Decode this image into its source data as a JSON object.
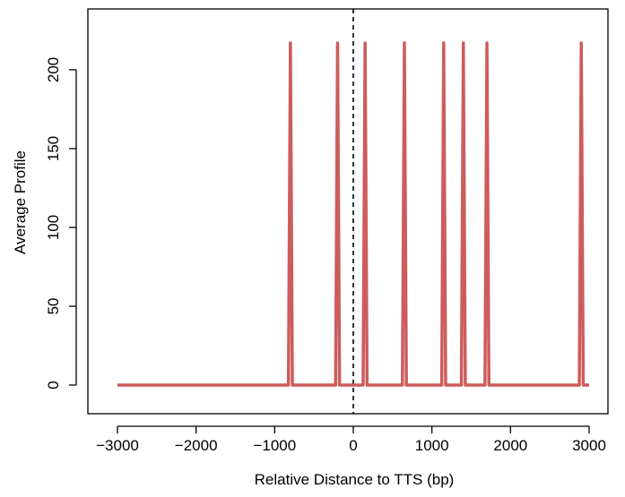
{
  "chart_data": {
    "type": "line",
    "title": "",
    "xlabel": "Relative Distance to TTS (bp)",
    "ylabel": "Average Profile",
    "xlim": [
      -3000,
      3000
    ],
    "ylim": [
      0,
      217
    ],
    "xticks": [
      -3000,
      -2000,
      -1000,
      0,
      1000,
      2000,
      3000
    ],
    "xtick_labels": [
      "−3000",
      "−2000",
      "−1000",
      "0",
      "1000",
      "2000",
      "3000"
    ],
    "yticks": [
      0,
      50,
      100,
      150,
      200
    ],
    "ytick_labels": [
      "0",
      "50",
      "100",
      "150",
      "200"
    ],
    "grid": false,
    "reference_line": {
      "x": 0,
      "style": "dashed",
      "color": "#000000"
    },
    "series": [
      {
        "color": "#cd5c5c",
        "x": [
          -3000,
          -2850,
          -2700,
          -2550,
          -2400,
          -2250,
          -2100,
          -1950,
          -1800,
          -1650,
          -1500,
          -1350,
          -1200,
          -1050,
          -900,
          -825,
          -800,
          -775,
          -225,
          -200,
          -175,
          125,
          150,
          175,
          625,
          650,
          675,
          1125,
          1150,
          1175,
          1375,
          1400,
          1425,
          1675,
          1700,
          1725,
          2875,
          2900,
          2925,
          3000
        ],
        "y": [
          0,
          0,
          0,
          0,
          0,
          0,
          0,
          0,
          0,
          0,
          0,
          0,
          0,
          0,
          0,
          0,
          217,
          0,
          0,
          217,
          0,
          0,
          217,
          0,
          0,
          217,
          0,
          0,
          217,
          0,
          0,
          217,
          0,
          0,
          217,
          0,
          0,
          217,
          0,
          0
        ]
      }
    ]
  }
}
